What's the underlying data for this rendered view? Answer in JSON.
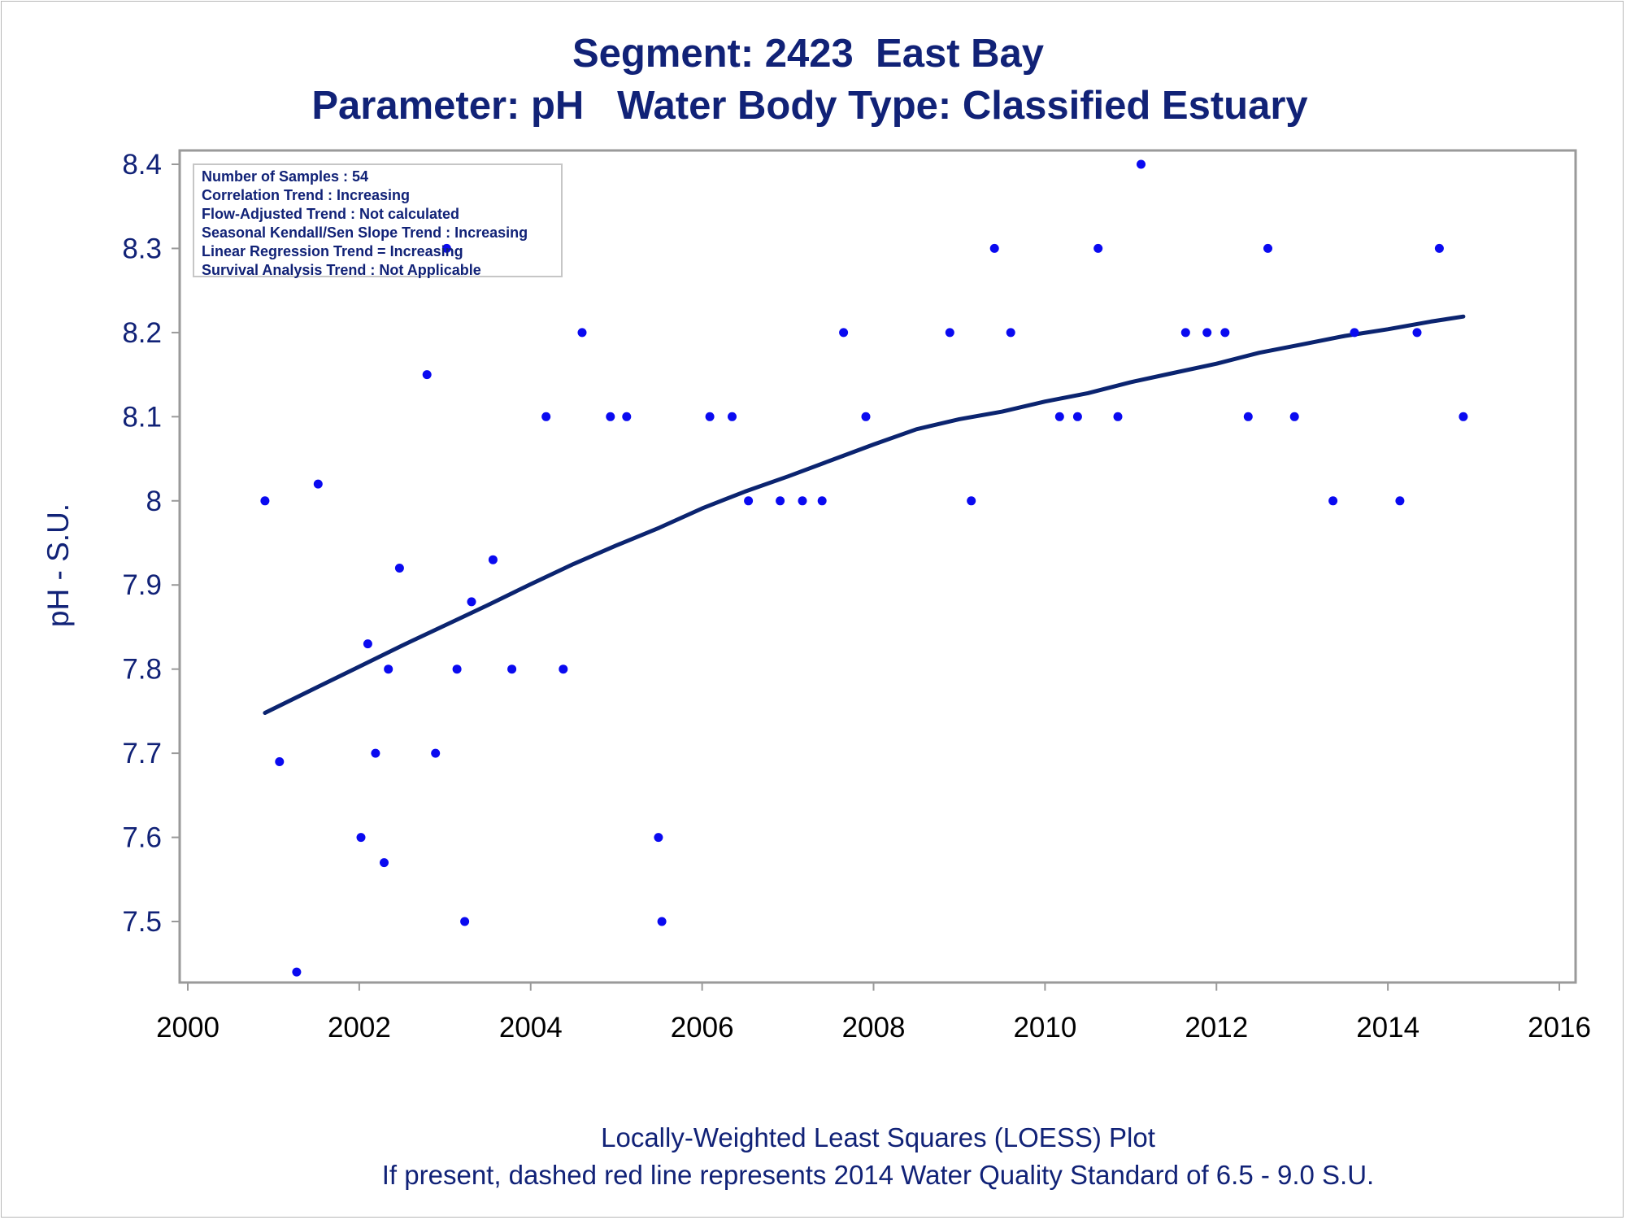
{
  "title": "Segment: 2423  East Bay",
  "subtitle": "Parameter: pH   Water Body Type: Classified Estuary",
  "footnotes": [
    "Locally-Weighted Least Squares (LOESS) Plot",
    "If present, dashed red line represents 2014 Water Quality Standard of 6.5 - 9.0 S.U."
  ],
  "stats_box": [
    "Number of Samples : 54",
    "Correlation Trend : Increasing",
    "Flow-Adjusted Trend : Not calculated",
    "Seasonal Kendall/Sen Slope Trend : Increasing",
    "Linear Regression Trend = Increasing",
    "Survival Analysis Trend : Not Applicable"
  ],
  "colors": {
    "text": "#112277",
    "points": "#0a0af0",
    "loess": "#0b2470",
    "frame": "#9a9a9a"
  },
  "chart_data": {
    "type": "scatter",
    "ylabel": "pH - S.U.",
    "xlabel": "",
    "xlim": [
      2000,
      2016
    ],
    "ylim": [
      7.43,
      8.41
    ],
    "x_ticks": [
      2000,
      2002,
      2004,
      2006,
      2008,
      2010,
      2012,
      2014,
      2016
    ],
    "y_ticks": [
      7.5,
      7.6,
      7.7,
      7.8,
      7.9,
      8.0,
      8.1,
      8.2,
      8.3,
      8.4
    ],
    "y_tick_labels": [
      "7.5",
      "7.6",
      "7.7",
      "7.8",
      "7.9",
      "8",
      "8.1",
      "8.2",
      "8.3",
      "8.4"
    ],
    "grid": false,
    "series": [
      {
        "type": "scatter",
        "points": [
          [
            2000.9,
            8.0
          ],
          [
            2001.07,
            7.69
          ],
          [
            2001.27,
            7.44
          ],
          [
            2001.52,
            8.02
          ],
          [
            2002.02,
            7.6
          ],
          [
            2002.1,
            7.83
          ],
          [
            2002.19,
            7.7
          ],
          [
            2002.29,
            7.57
          ],
          [
            2002.34,
            7.8
          ],
          [
            2002.47,
            7.92
          ],
          [
            2002.79,
            8.15
          ],
          [
            2002.89,
            7.7
          ],
          [
            2003.02,
            8.3
          ],
          [
            2003.14,
            7.8
          ],
          [
            2003.23,
            7.5
          ],
          [
            2003.31,
            7.88
          ],
          [
            2003.56,
            7.93
          ],
          [
            2003.78,
            7.8
          ],
          [
            2004.18,
            8.1
          ],
          [
            2004.38,
            7.8
          ],
          [
            2004.6,
            8.2
          ],
          [
            2004.93,
            8.1
          ],
          [
            2005.12,
            8.1
          ],
          [
            2005.49,
            7.6
          ],
          [
            2005.53,
            7.5
          ],
          [
            2006.09,
            8.1
          ],
          [
            2006.35,
            8.1
          ],
          [
            2006.54,
            8.0
          ],
          [
            2006.91,
            8.0
          ],
          [
            2007.17,
            8.0
          ],
          [
            2007.4,
            8.0
          ],
          [
            2007.65,
            8.2
          ],
          [
            2007.91,
            8.1
          ],
          [
            2008.89,
            8.2
          ],
          [
            2009.14,
            8.0
          ],
          [
            2009.41,
            8.3
          ],
          [
            2009.6,
            8.2
          ],
          [
            2010.17,
            8.1
          ],
          [
            2010.38,
            8.1
          ],
          [
            2010.62,
            8.3
          ],
          [
            2010.85,
            8.1
          ],
          [
            2011.12,
            8.4
          ],
          [
            2011.64,
            8.2
          ],
          [
            2011.89,
            8.2
          ],
          [
            2012.1,
            8.2
          ],
          [
            2012.37,
            8.1
          ],
          [
            2012.6,
            8.3
          ],
          [
            2012.91,
            8.1
          ],
          [
            2013.36,
            8.0
          ],
          [
            2013.61,
            8.2
          ],
          [
            2014.14,
            8.0
          ],
          [
            2014.34,
            8.2
          ],
          [
            2014.6,
            8.3
          ],
          [
            2014.88,
            8.1
          ]
        ]
      },
      {
        "type": "line",
        "points": [
          [
            2000.9,
            7.748
          ],
          [
            2001.5,
            7.778
          ],
          [
            2002.0,
            7.803
          ],
          [
            2002.5,
            7.828
          ],
          [
            2003.0,
            7.852
          ],
          [
            2003.5,
            7.876
          ],
          [
            2004.0,
            7.901
          ],
          [
            2004.5,
            7.925
          ],
          [
            2005.0,
            7.947
          ],
          [
            2005.5,
            7.968
          ],
          [
            2006.0,
            7.991
          ],
          [
            2006.5,
            8.011
          ],
          [
            2007.0,
            8.029
          ],
          [
            2007.5,
            8.048
          ],
          [
            2008.0,
            8.067
          ],
          [
            2008.5,
            8.085
          ],
          [
            2009.0,
            8.097
          ],
          [
            2009.5,
            8.106
          ],
          [
            2010.0,
            8.118
          ],
          [
            2010.5,
            8.128
          ],
          [
            2011.0,
            8.141
          ],
          [
            2011.5,
            8.152
          ],
          [
            2012.0,
            8.163
          ],
          [
            2012.5,
            8.176
          ],
          [
            2013.0,
            8.186
          ],
          [
            2013.5,
            8.196
          ],
          [
            2014.0,
            8.204
          ],
          [
            2014.5,
            8.213
          ],
          [
            2014.88,
            8.219
          ]
        ]
      }
    ]
  }
}
